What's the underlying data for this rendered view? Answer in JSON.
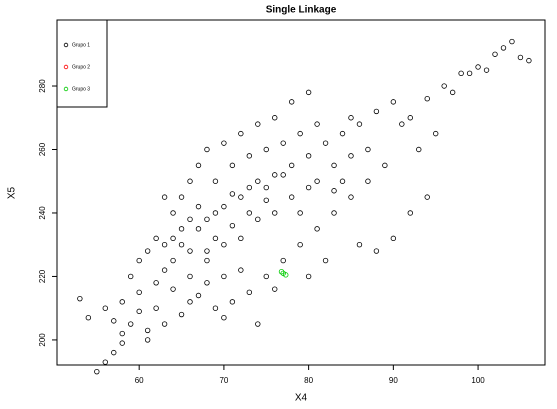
{
  "chart_data": {
    "type": "scatter",
    "title": "Single Linkage",
    "x_label": "X4",
    "y_label": "X5",
    "xlim": [
      50.3,
      107.9
    ],
    "xticks": [
      60,
      70,
      80,
      90,
      100
    ],
    "ylim": [
      192.1,
      300.8
    ],
    "yticks": [
      200,
      220,
      240,
      260,
      280
    ],
    "legend": "top-left",
    "series": [
      {
        "name": "Grupo 1",
        "color": "#000000",
        "x": [
          55,
          56,
          57,
          58,
          54,
          53,
          56,
          58,
          60,
          59,
          61,
          62,
          63,
          64,
          65,
          66,
          67,
          68,
          69,
          70,
          71,
          72,
          73,
          74,
          75,
          76,
          78,
          80,
          82,
          84,
          86,
          85,
          88,
          90,
          92,
          94,
          96,
          98,
          100,
          102,
          103,
          104,
          105,
          106,
          101,
          99,
          97,
          95,
          93,
          91,
          89,
          87,
          85,
          83,
          81,
          79,
          77,
          75,
          73,
          71,
          69,
          67,
          65,
          63,
          61,
          66,
          68,
          70,
          72,
          74,
          76,
          78,
          80,
          64,
          65,
          66,
          67,
          68,
          70,
          72,
          74,
          76,
          78,
          80,
          62,
          63,
          60,
          61,
          69,
          71,
          73,
          75,
          77,
          79,
          81,
          83,
          85,
          87,
          84,
          86,
          88,
          90,
          92,
          94,
          82,
          80,
          76,
          74,
          70,
          68,
          66,
          64,
          62,
          60,
          58,
          57,
          59,
          63,
          65,
          67,
          69,
          71,
          73,
          75,
          77,
          79,
          81,
          83,
          72,
          70,
          68,
          66,
          64
        ],
        "y": [
          190,
          193,
          196,
          199,
          207,
          213,
          210,
          212,
          215,
          205,
          203,
          218,
          222,
          225,
          230,
          228,
          235,
          238,
          240,
          242,
          236,
          245,
          248,
          250,
          244,
          252,
          255,
          258,
          262,
          265,
          268,
          270,
          272,
          275,
          270,
          276,
          280,
          284,
          286,
          290,
          292,
          294,
          289,
          288,
          285,
          284,
          278,
          265,
          260,
          268,
          255,
          250,
          245,
          240,
          235,
          230,
          225,
          220,
          215,
          212,
          210,
          214,
          208,
          205,
          200,
          220,
          225,
          230,
          232,
          238,
          240,
          245,
          248,
          240,
          245,
          250,
          255,
          260,
          262,
          265,
          268,
          270,
          275,
          278,
          232,
          245,
          225,
          228,
          250,
          255,
          258,
          260,
          262,
          265,
          268,
          255,
          258,
          260,
          250,
          230,
          228,
          232,
          240,
          245,
          225,
          220,
          216,
          205,
          207,
          218,
          212,
          216,
          210,
          209,
          202,
          206,
          220,
          230,
          235,
          242,
          232,
          246,
          240,
          248,
          252,
          240,
          250,
          247,
          222,
          220,
          228,
          238,
          232
        ]
      },
      {
        "name": "Grupo 2",
        "color": "#ff0000",
        "x": [],
        "y": []
      },
      {
        "name": "Grupo 3",
        "color": "#00cc00",
        "x": [
          77,
          77.3,
          76.8
        ],
        "y": [
          221,
          220.5,
          221.5
        ]
      }
    ]
  }
}
